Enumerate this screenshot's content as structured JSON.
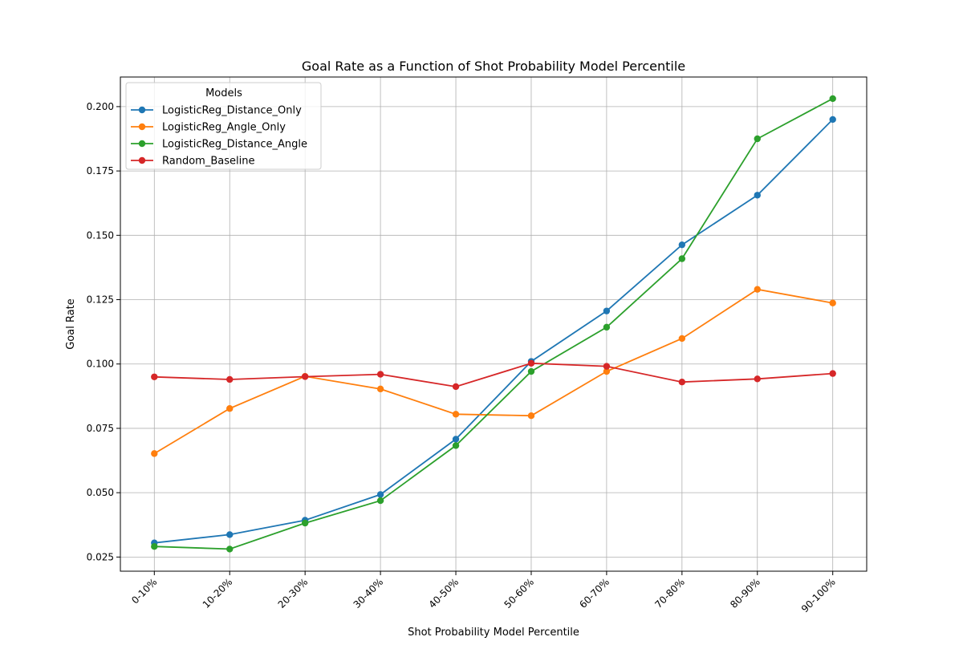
{
  "chart_data": {
    "type": "line",
    "title": "Goal Rate as a Function of Shot Probability Model Percentile",
    "xlabel": "Shot Probability Model Percentile",
    "ylabel": "Goal Rate",
    "categories": [
      "0-10%",
      "10-20%",
      "20-30%",
      "30-40%",
      "40-50%",
      "50-60%",
      "60-70%",
      "70-80%",
      "80-90%",
      "90-100%"
    ],
    "ylim": [
      0.0195,
      0.2115
    ],
    "yticks": [
      0.025,
      0.05,
      0.075,
      0.1,
      0.125,
      0.15,
      0.175,
      0.2
    ],
    "ytick_labels": [
      "0.025",
      "0.050",
      "0.075",
      "0.100",
      "0.125",
      "0.150",
      "0.175",
      "0.200"
    ],
    "grid": true,
    "legend": {
      "title": "Models",
      "placement": "top-left"
    },
    "series": [
      {
        "name": "LogisticReg_Distance_Only",
        "color": "#1f77b4",
        "values": [
          0.0305,
          0.0337,
          0.0393,
          0.0493,
          0.0708,
          0.101,
          0.1206,
          0.1463,
          0.1656,
          0.195
        ]
      },
      {
        "name": "LogisticReg_Angle_Only",
        "color": "#ff7f0e",
        "values": [
          0.0652,
          0.0827,
          0.0952,
          0.0903,
          0.0805,
          0.0799,
          0.0971,
          0.1099,
          0.129,
          0.1237
        ]
      },
      {
        "name": "LogisticReg_Distance_Angle",
        "color": "#2ca02c",
        "values": [
          0.0291,
          0.0281,
          0.0382,
          0.0469,
          0.0683,
          0.0971,
          0.1143,
          0.1409,
          0.1875,
          0.2031
        ]
      },
      {
        "name": "Random_Baseline",
        "color": "#d62728",
        "values": [
          0.095,
          0.094,
          0.0951,
          0.096,
          0.0912,
          0.1003,
          0.0991,
          0.093,
          0.0942,
          0.0963
        ]
      }
    ]
  }
}
